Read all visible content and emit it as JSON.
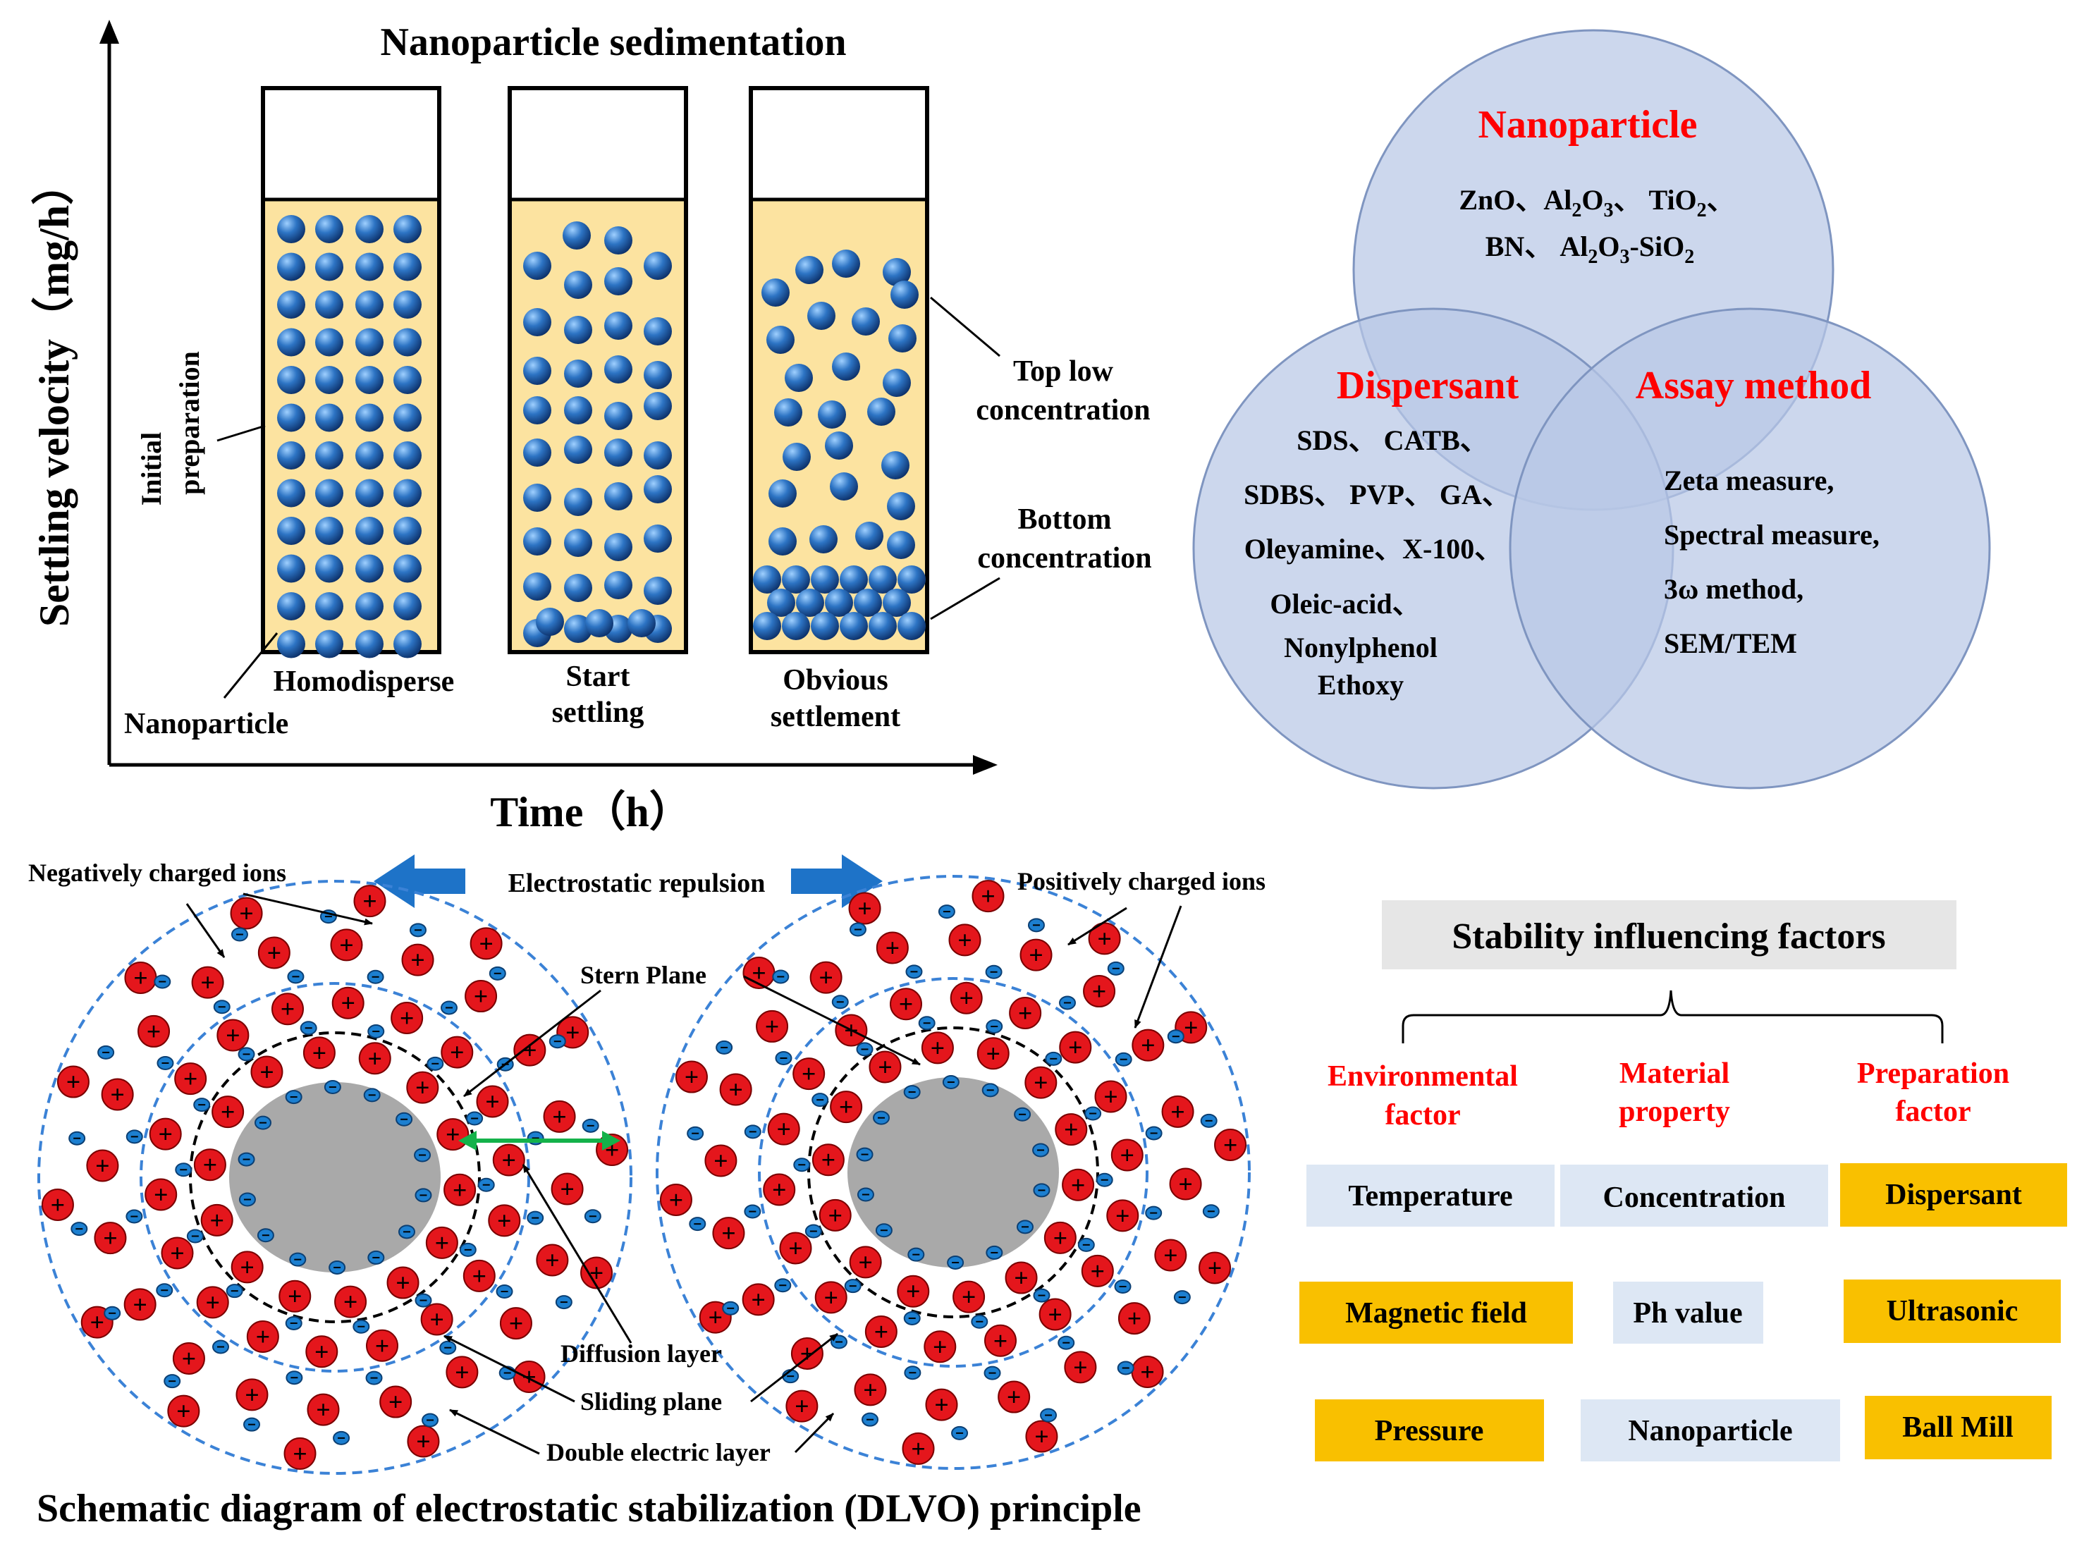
{
  "colors": {
    "particle": "#1f5fa8",
    "liquid": "#fce3a0",
    "venn": "#b8c8e6",
    "pos_ion": "#e4161c",
    "neg_ion": "#1c7fd0",
    "core": "#a9a9a9",
    "arrow": "#1e73c8",
    "red_text": "#ff0000",
    "box_blue": "#dde7f4",
    "box_orange": "#f9c000",
    "title_box": "#e6e6e6",
    "green": "#14b24a"
  },
  "sedimentation": {
    "title": "Nanoparticle sedimentation",
    "y_axis": "Settling velocity（mg/h）",
    "x_axis": "Time（h）",
    "initial_1": "Initial",
    "initial_2": "preparation",
    "tube1": "Homodisperse",
    "tube2_1": "Start",
    "tube2_2": "settling",
    "tube3_1": "Obvious",
    "tube3_2": "settlement",
    "nanoparticle": "Nanoparticle",
    "top_low_1": "Top  low",
    "top_low_2": "concentration",
    "bottom_1": "Bottom",
    "bottom_2": "concentration"
  },
  "venn": {
    "nano_title": "Nanoparticle",
    "nano_l1_a": "ZnO、Al",
    "nano_l1_b": "2",
    "nano_l1_c": "O",
    "nano_l1_d": "3",
    "nano_l1_e": "、 TiO",
    "nano_l1_f": "2",
    "nano_l1_g": "、",
    "nano_l2_a": "BN、 Al",
    "nano_l2_b": "2",
    "nano_l2_c": "O",
    "nano_l2_d": "3",
    "nano_l2_e": "-SiO",
    "nano_l2_f": "2",
    "disp_title": "Dispersant",
    "disp_1": "SDS、 CATB、",
    "disp_2": "SDBS、 PVP、 GA、",
    "disp_3": "Oleyamine、X-100、",
    "disp_4": "Oleic-acid、",
    "disp_5": "Nonylphenol",
    "disp_6": "Ethoxy",
    "assay_title": "Assay method",
    "assay_1": "Zeta measure,",
    "assay_2": "Spectral measure,",
    "assay_3": "3ω method,",
    "assay_4": "SEM/TEM"
  },
  "dlvo": {
    "negative_ions": "Negatively charged ions",
    "repulsion": "Electrostatic repulsion",
    "positive_ions": "Positively charged ions",
    "stern": "Stern Plane",
    "diffusion": "Diffusion layer",
    "sliding": "Sliding plane",
    "double": "Double electric layer",
    "caption": "Schematic diagram of electrostatic stabilization (DLVO) principle",
    "plus": "+"
  },
  "stability": {
    "title": "Stability influencing factors",
    "cat1_1": "Environmental",
    "cat1_2": "factor",
    "cat2_1": "Material",
    "cat2_2": "property",
    "cat3_1": "Preparation",
    "cat3_2": "factor",
    "temperature": "Temperature",
    "concentration": "Concentration",
    "dispersant": "Dispersant",
    "magnetic": "Magnetic field",
    "ph": "Ph value",
    "ultrasonic": "Ultrasonic",
    "pressure": "Pressure",
    "nanoparticle": "Nanoparticle",
    "ballmill": "Ball Mill"
  }
}
